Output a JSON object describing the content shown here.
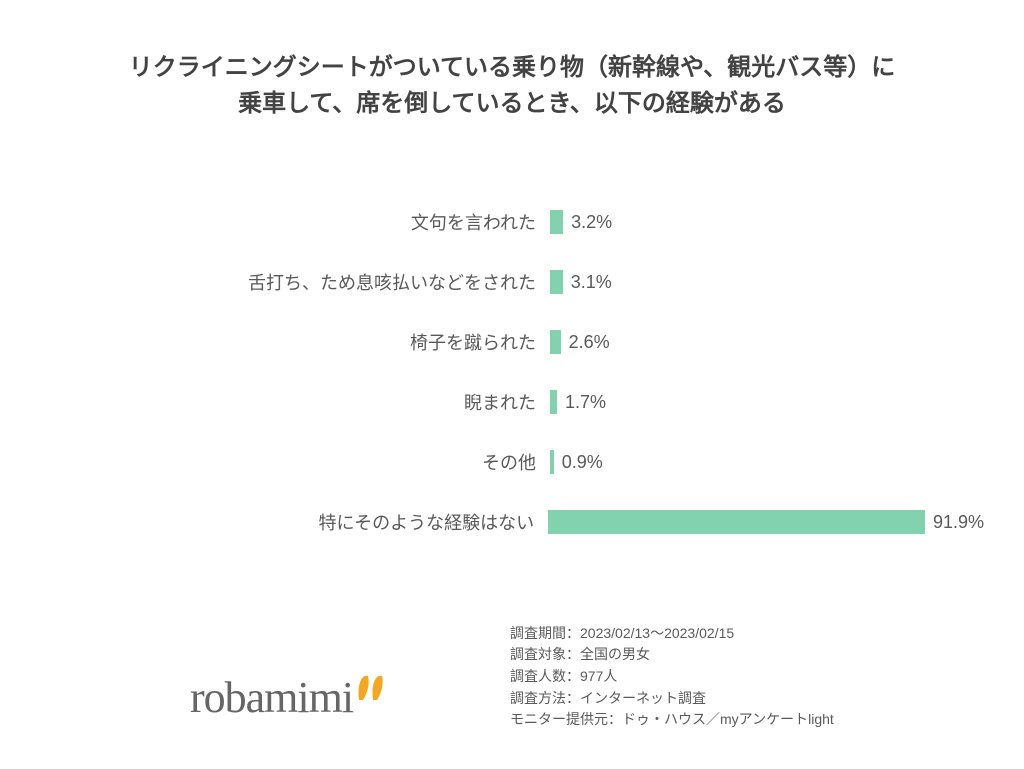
{
  "title": {
    "line1": "リクライニングシートがついている乗り物（新幹線や、観光バス等）に",
    "line2": "乗車して、席を倒しているとき、以下の経験がある",
    "fontsize": 24,
    "color": "#434343"
  },
  "chart": {
    "type": "bar-horizontal",
    "bar_color": "#82d2af",
    "value_label_color": "#595959",
    "category_label_color": "#595959",
    "value_fontsize": 18,
    "category_fontsize": 18,
    "xlim": [
      0,
      100
    ],
    "bar_pixel_scale": 4.1,
    "rows": [
      {
        "label": "文句を言われた",
        "value": 3.2,
        "display": "3.2%"
      },
      {
        "label": "舌打ち、ため息咳払いなどをされた",
        "value": 3.1,
        "display": "3.1%"
      },
      {
        "label": "椅子を蹴られた",
        "value": 2.6,
        "display": "2.6%"
      },
      {
        "label": "睨まれた",
        "value": 1.7,
        "display": "1.7%"
      },
      {
        "label": "その他",
        "value": 0.9,
        "display": "0.9%"
      },
      {
        "label": "特にそのような経験はない",
        "value": 91.9,
        "display": "91.9%"
      }
    ]
  },
  "logo": {
    "text": "robamimi",
    "text_color": "#666666",
    "fontsize": 44,
    "accent_color": "#f6a720"
  },
  "meta": {
    "color": "#595959",
    "fontsize": 14,
    "lines": [
      "調査期間：2023/02/13～2023/02/15",
      "調査対象：全国の男女",
      "調査人数：977人",
      "調査方法：インターネット調査",
      "モニター提供元：ドゥ・ハウス／myアンケートlight"
    ]
  }
}
